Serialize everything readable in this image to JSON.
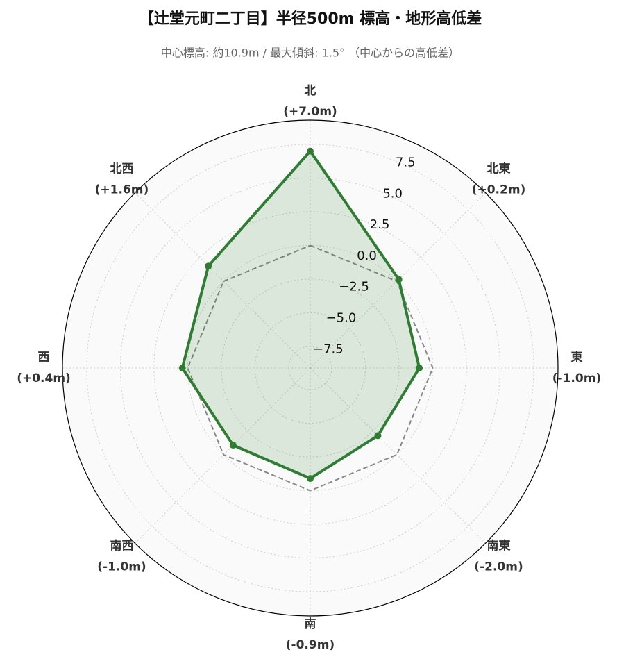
{
  "chart_data": {
    "type": "radar",
    "title": "【辻堂元町二丁目】半径500m 標高・地形高低差",
    "subtitle": "中心標高: 約10.9m / 最大傾斜: 1.5° （中心からの高低差）",
    "categories": [
      "北",
      "北東",
      "東",
      "南東",
      "南",
      "南西",
      "西",
      "北西"
    ],
    "values": [
      7.0,
      0.2,
      -1.0,
      -2.0,
      -0.9,
      -1.0,
      0.4,
      1.6
    ],
    "value_labels": [
      "(+7.0m)",
      "(+0.2m)",
      "(-1.0m)",
      "(-2.0m)",
      "(-0.9m)",
      "(-1.0m)",
      "(+0.4m)",
      "(+1.6m)"
    ],
    "color": "#2e7d32",
    "reference_line": 0,
    "ylim": [
      -9.1,
      9.3
    ],
    "yticks": [
      {
        "value": -7.5,
        "label": "−7.5"
      },
      {
        "value": -5,
        "label": "−5.0"
      },
      {
        "value": -2.5,
        "label": "−2.5"
      },
      {
        "value": 0,
        "label": "0.0"
      },
      2.5,
      {
        "value": 5,
        "label": "5.0"
      },
      7.5
    ],
    "grid": true
  }
}
